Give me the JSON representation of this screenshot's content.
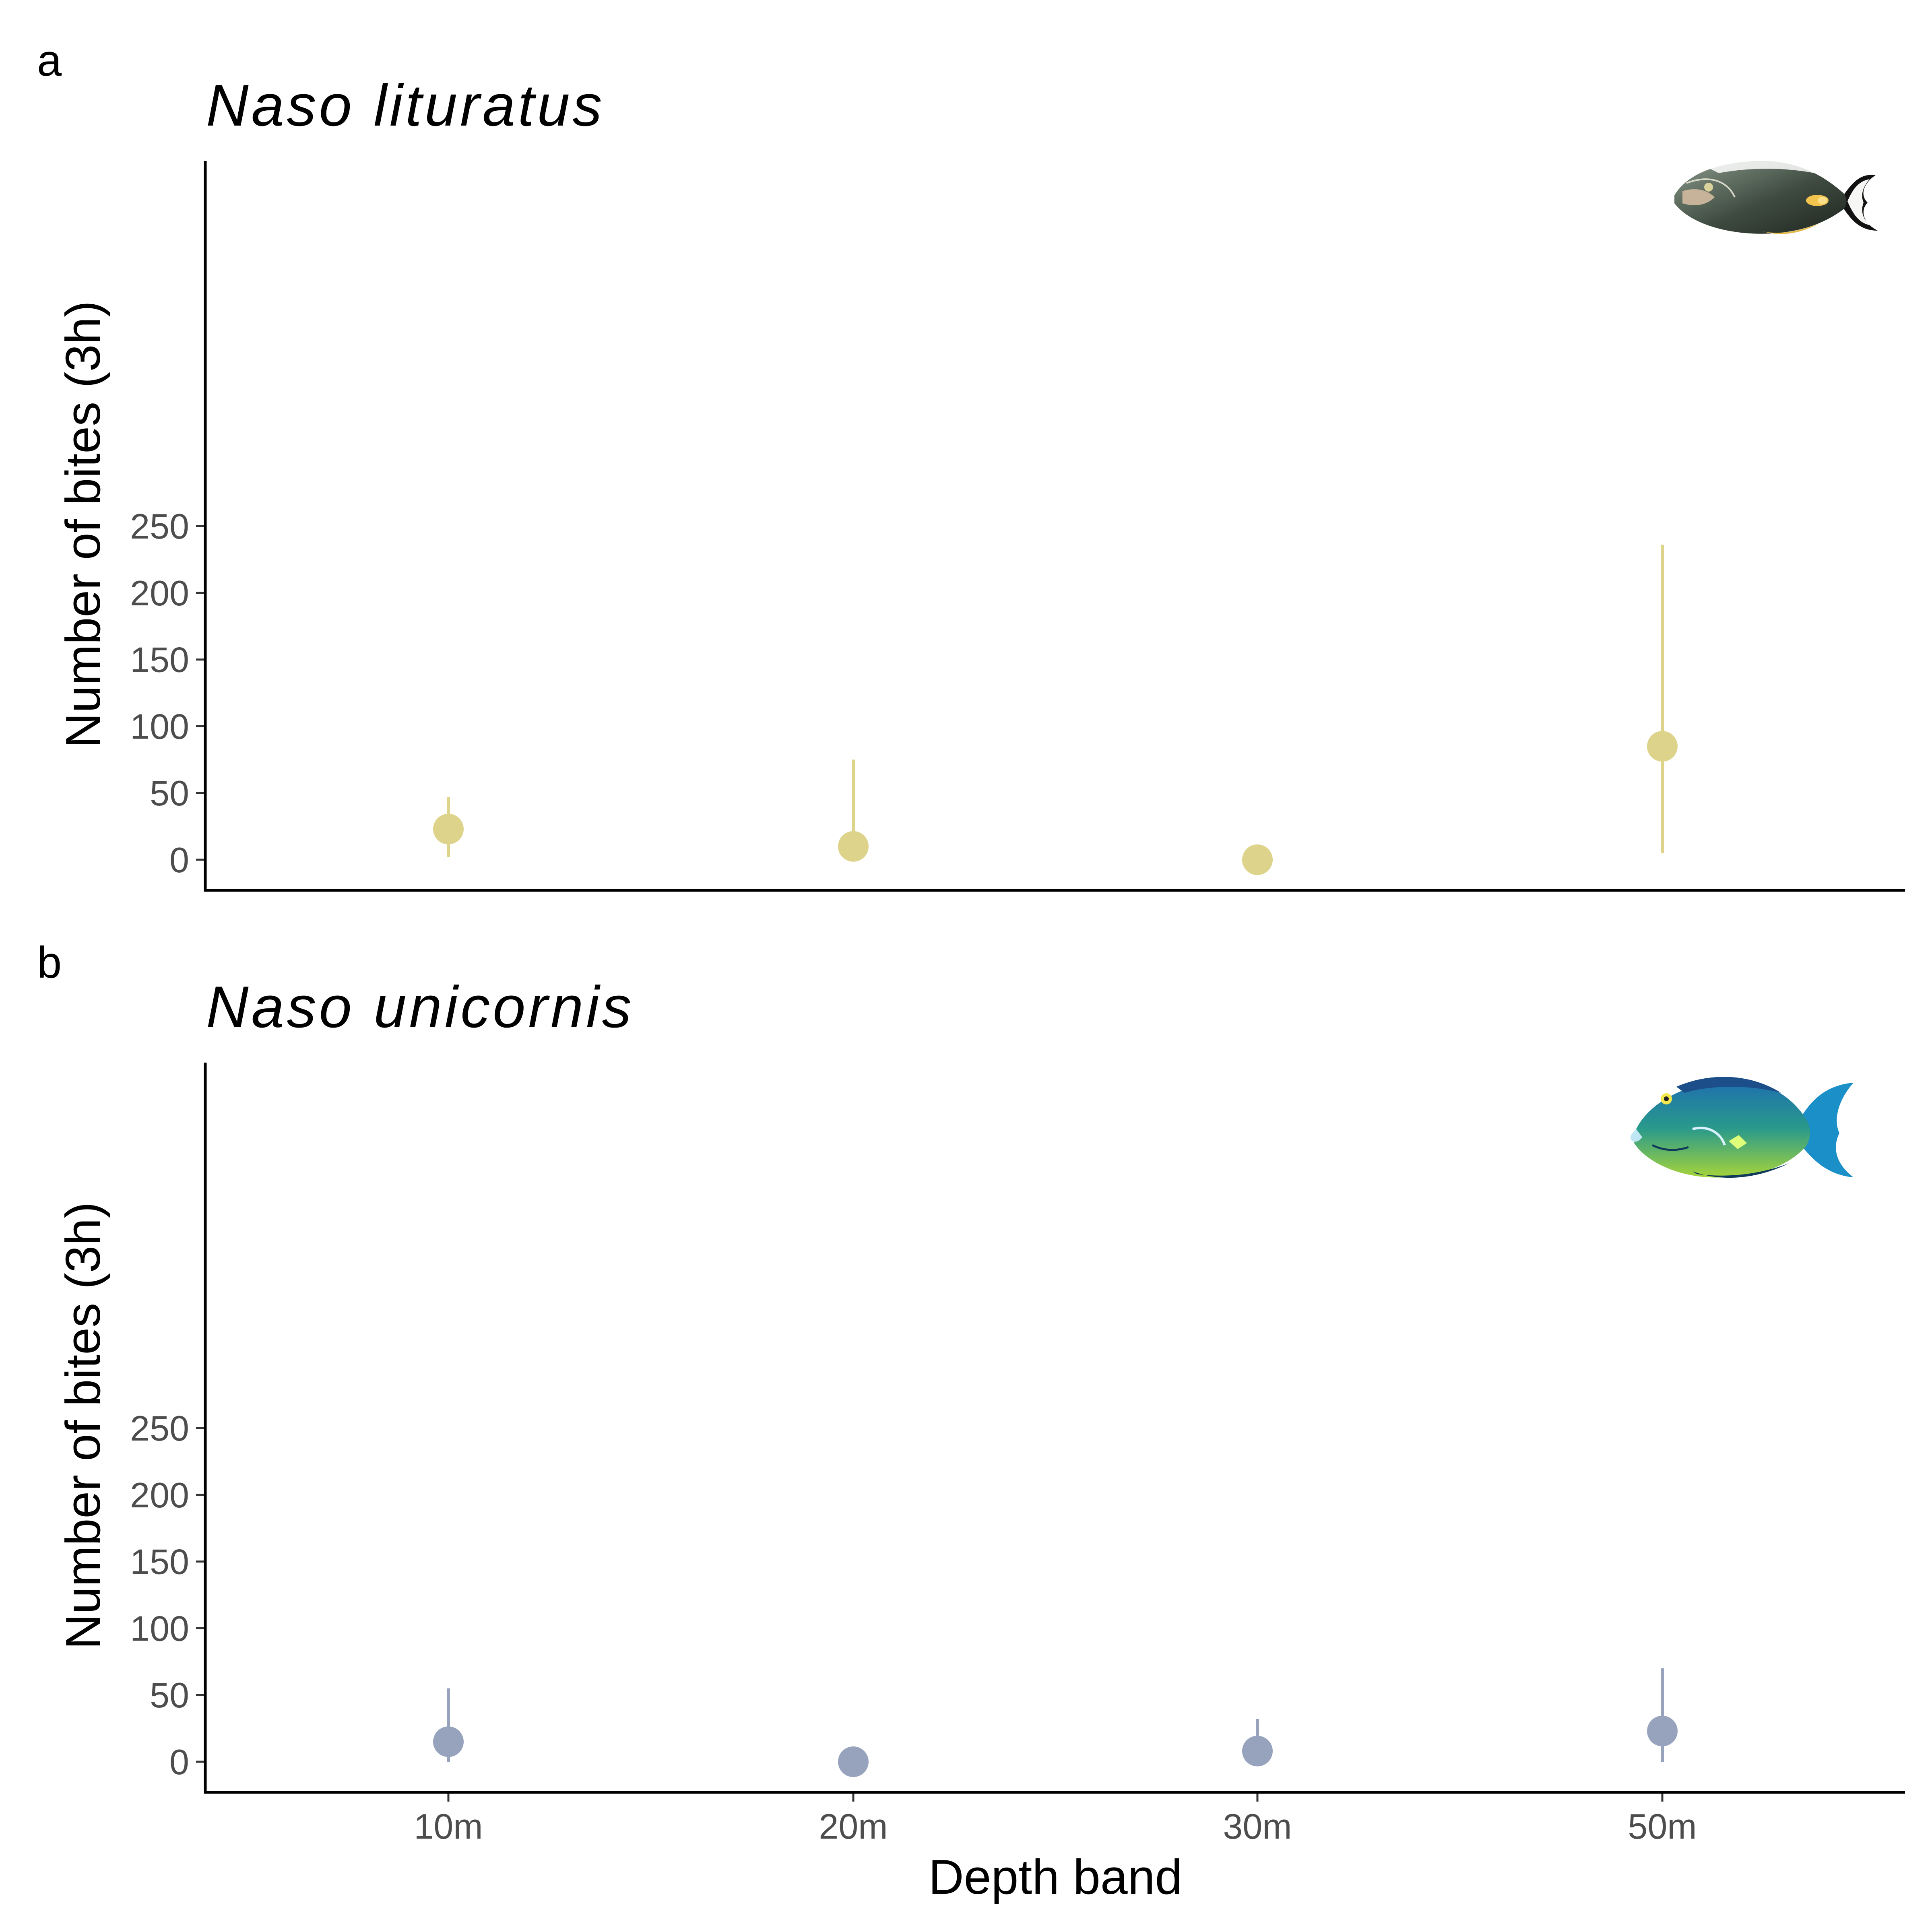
{
  "chart_data": [
    {
      "type": "scatter",
      "panel_label": "a",
      "title": "Naso lituratus",
      "ylabel": "Number of bites (3h)",
      "xlabel": "",
      "categories": [
        "10m",
        "20m",
        "30m",
        "50m"
      ],
      "values": [
        23,
        10,
        0,
        85
      ],
      "error_low": [
        2,
        0,
        0,
        5
      ],
      "error_high": [
        47,
        75,
        0,
        236
      ],
      "ylim": [
        -12,
        262
      ],
      "yticks": [
        0,
        50,
        100,
        150,
        200,
        250
      ],
      "show_xticks": false,
      "grid": false,
      "color": "#ddd38a",
      "icon": "naso-lituratus-fish-icon"
    },
    {
      "type": "scatter",
      "panel_label": "b",
      "title": "Naso unicornis",
      "ylabel": "Number of bites (3h)",
      "xlabel": "Depth band",
      "categories": [
        "10m",
        "20m",
        "30m",
        "50m"
      ],
      "values": [
        15,
        0,
        8,
        23
      ],
      "error_low": [
        0,
        0,
        1,
        0
      ],
      "error_high": [
        55,
        0,
        32,
        70
      ],
      "ylim": [
        -12,
        262
      ],
      "yticks": [
        0,
        50,
        100,
        150,
        200,
        250
      ],
      "show_xticks": true,
      "grid": false,
      "color": "#97a3bd",
      "icon": "naso-unicornis-fish-icon"
    }
  ]
}
